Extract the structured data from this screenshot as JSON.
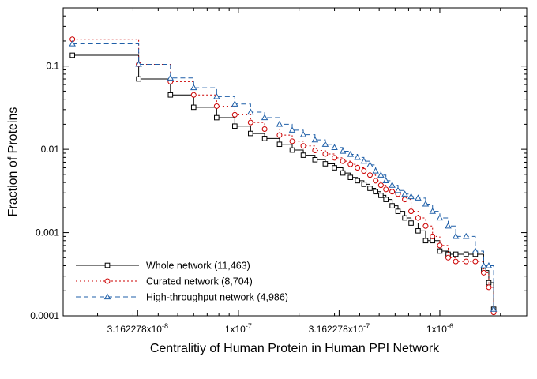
{
  "chart_data": {
    "type": "line",
    "xlabel": "Centralitiy of Human Protein in Human PPI Network",
    "ylabel": "Fraction of Proteins",
    "xscale": "log",
    "yscale": "log",
    "xlim": [
      1.35e-08,
      2.7e-06
    ],
    "ylim": [
      0.0001,
      0.5
    ],
    "x_ticks": [
      {
        "value": 3.162278e-08,
        "label": "3.162278x10-8"
      },
      {
        "value": 1e-07,
        "label": "1x10-7"
      },
      {
        "value": 3.162278e-07,
        "label": "3.162278x10-7"
      },
      {
        "value": 1e-06,
        "label": "1x10-6"
      }
    ],
    "y_ticks": [
      {
        "value": 0.1,
        "label": "0.1"
      },
      {
        "value": 0.01,
        "label": "0.01"
      },
      {
        "value": 0.001,
        "label": "0.001"
      },
      {
        "value": 0.0001,
        "label": "0.0001"
      }
    ],
    "grid": false,
    "legend_position": "bottom-left",
    "series": [
      {
        "name": "Whole network (11,463)",
        "color": "#000000",
        "line_style": "solid",
        "marker": "square",
        "x": [
          1.5e-08,
          3.2e-08,
          4.6e-08,
          6e-08,
          7.8e-08,
          9.6e-08,
          1.15e-07,
          1.35e-07,
          1.6e-07,
          1.85e-07,
          2.1e-07,
          2.4e-07,
          2.7e-07,
          3e-07,
          3.3e-07,
          3.6e-07,
          3.9e-07,
          4.2e-07,
          4.5e-07,
          4.8e-07,
          5.1e-07,
          5.4e-07,
          5.8e-07,
          6.2e-07,
          6.7e-07,
          7.2e-07,
          7.8e-07,
          8.5e-07,
          9.2e-07,
          1e-06,
          1.1e-06,
          1.2e-06,
          1.35e-06,
          1.5e-06,
          1.65e-06,
          1.75e-06,
          1.85e-06
        ],
        "y": [
          0.135,
          0.07,
          0.045,
          0.032,
          0.024,
          0.019,
          0.0155,
          0.0135,
          0.0115,
          0.0098,
          0.0085,
          0.0075,
          0.0067,
          0.006,
          0.0052,
          0.0046,
          0.0042,
          0.0038,
          0.0034,
          0.0031,
          0.0028,
          0.0025,
          0.0021,
          0.0018,
          0.0015,
          0.0013,
          0.00105,
          0.0008,
          0.0008,
          0.0006,
          0.00055,
          0.00055,
          0.00055,
          0.00055,
          0.00035,
          0.00025,
          0.00012
        ]
      },
      {
        "name": "Curated network (8,704)",
        "color": "#cc0000",
        "line_style": "dotted",
        "marker": "circle",
        "x": [
          1.5e-08,
          3.2e-08,
          4.6e-08,
          6e-08,
          7.8e-08,
          9.6e-08,
          1.15e-07,
          1.35e-07,
          1.6e-07,
          1.85e-07,
          2.1e-07,
          2.4e-07,
          2.7e-07,
          3e-07,
          3.3e-07,
          3.6e-07,
          3.9e-07,
          4.2e-07,
          4.5e-07,
          4.8e-07,
          5.1e-07,
          5.4e-07,
          5.8e-07,
          6.2e-07,
          6.7e-07,
          7.2e-07,
          7.8e-07,
          8.5e-07,
          9.2e-07,
          1e-06,
          1.1e-06,
          1.2e-06,
          1.35e-06,
          1.5e-06,
          1.65e-06,
          1.75e-06,
          1.85e-06
        ],
        "y": [
          0.21,
          0.105,
          0.065,
          0.045,
          0.033,
          0.026,
          0.021,
          0.0175,
          0.0148,
          0.0125,
          0.011,
          0.0097,
          0.0088,
          0.0079,
          0.0072,
          0.0066,
          0.006,
          0.0055,
          0.0049,
          0.0042,
          0.0037,
          0.0033,
          0.0031,
          0.0029,
          0.0025,
          0.0018,
          0.0015,
          0.0012,
          0.0009,
          0.0007,
          0.0005,
          0.00045,
          0.00045,
          0.00045,
          0.00033,
          0.00022,
          0.00011
        ]
      },
      {
        "name": "High-throughput network (4,986)",
        "color": "#1f5fa8",
        "line_style": "dashed",
        "marker": "triangle",
        "x": [
          1.5e-08,
          3.2e-08,
          4.6e-08,
          6e-08,
          7.8e-08,
          9.6e-08,
          1.15e-07,
          1.35e-07,
          1.6e-07,
          1.85e-07,
          2.1e-07,
          2.4e-07,
          2.7e-07,
          3e-07,
          3.3e-07,
          3.6e-07,
          3.9e-07,
          4.2e-07,
          4.5e-07,
          4.8e-07,
          5.1e-07,
          5.4e-07,
          5.8e-07,
          6.2e-07,
          6.7e-07,
          7.2e-07,
          7.8e-07,
          8.5e-07,
          9.2e-07,
          1e-06,
          1.1e-06,
          1.2e-06,
          1.35e-06,
          1.5e-06,
          1.65e-06,
          1.75e-06,
          1.85e-06
        ],
        "y": [
          0.185,
          0.105,
          0.072,
          0.055,
          0.043,
          0.035,
          0.028,
          0.024,
          0.02,
          0.017,
          0.015,
          0.013,
          0.0115,
          0.0105,
          0.0095,
          0.0087,
          0.008,
          0.0072,
          0.0065,
          0.0055,
          0.0049,
          0.0042,
          0.0037,
          0.0032,
          0.0029,
          0.0027,
          0.0026,
          0.0022,
          0.0018,
          0.0015,
          0.0012,
          0.0009,
          0.0009,
          0.0006,
          0.0004,
          0.0004,
          0.00012
        ]
      }
    ]
  }
}
